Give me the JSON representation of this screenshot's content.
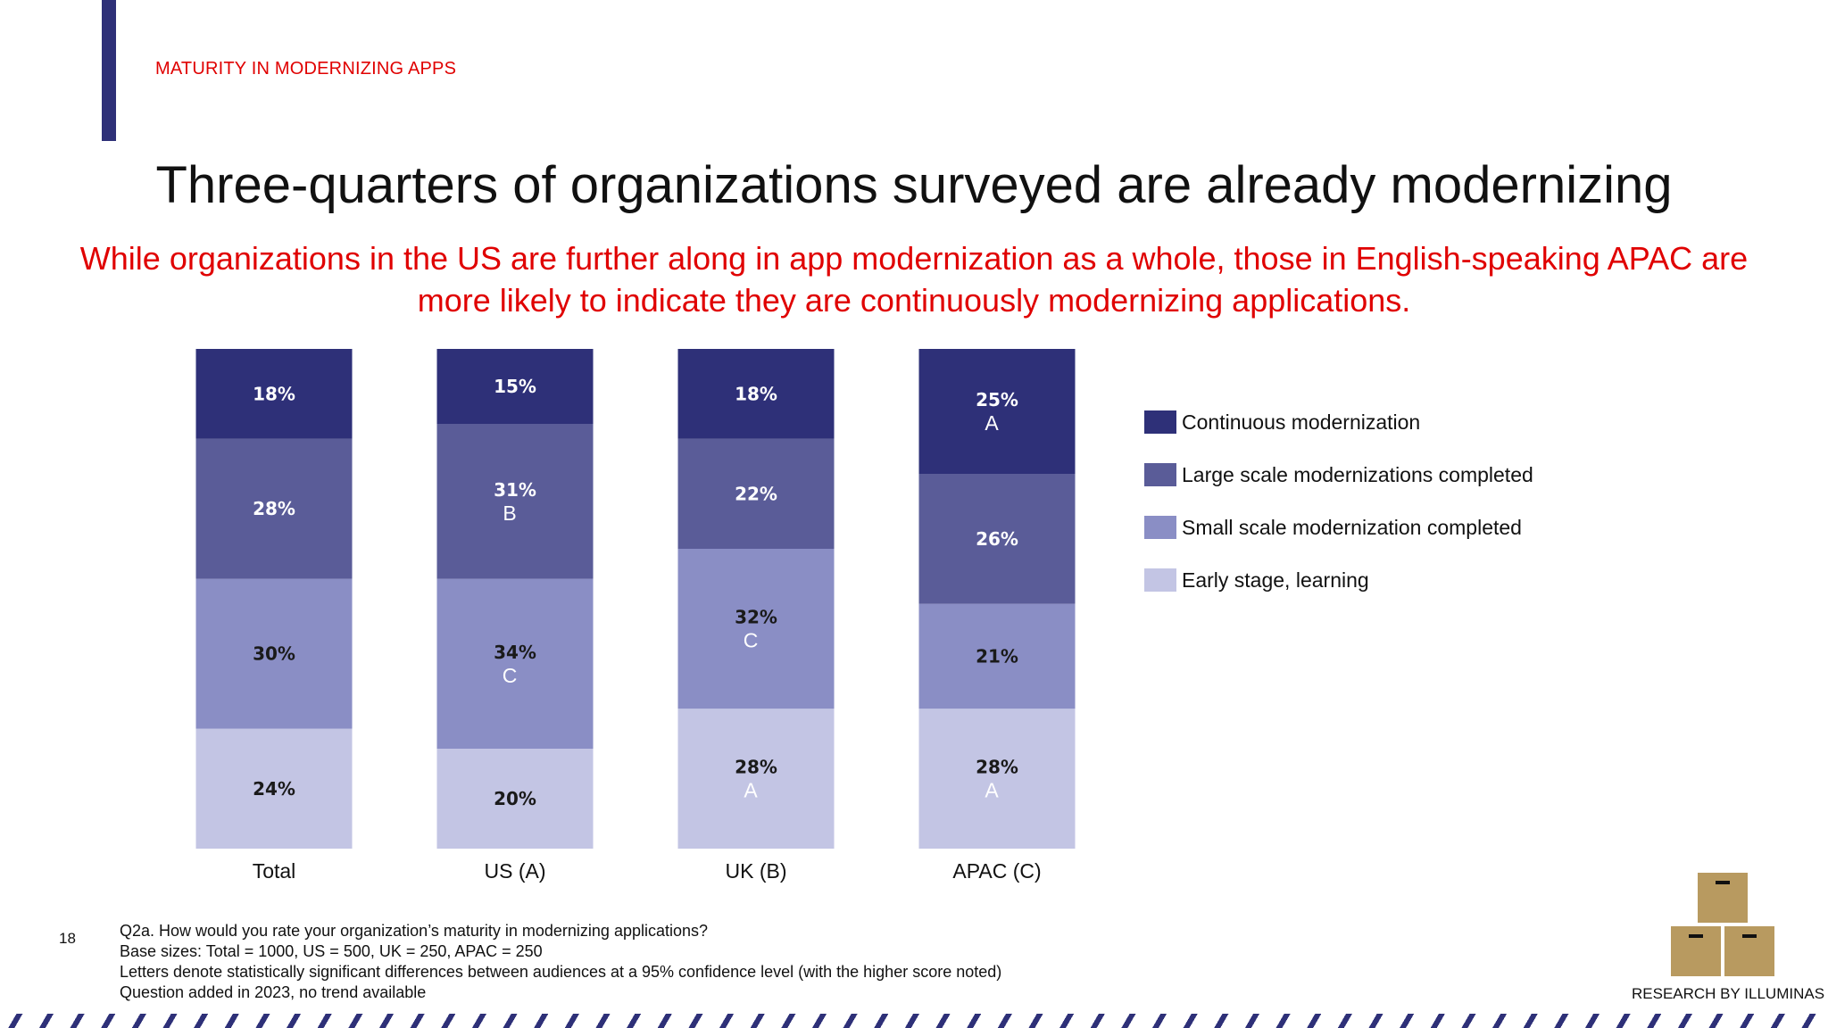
{
  "header": {
    "section_label": "MATURITY IN MODERNIZING APPS",
    "title": "Three-quarters of organizations surveyed are already modernizing",
    "subtitle": "While organizations in the US are further along in app modernization as a whole, those in English-speaking APAC are more likely to indicate they are continuously modernizing applications."
  },
  "chart_data": {
    "type": "bar",
    "stacked": true,
    "orientation": "vertical",
    "categories": [
      "Total",
      "US (A)",
      "UK (B)",
      "APAC (C)"
    ],
    "series": [
      {
        "name": "Early stage, learning",
        "color": "#c3c5e4",
        "label_color": "#1a1a1a",
        "values": [
          24,
          20,
          28,
          28
        ],
        "labels": [
          "24%",
          "20%",
          "28%",
          "28%"
        ],
        "sig": [
          "",
          "",
          "A",
          "A"
        ]
      },
      {
        "name": "Small scale modernization completed",
        "color": "#8a8ec5",
        "label_color": "#1a1a1a",
        "values": [
          30,
          34,
          32,
          21
        ],
        "labels": [
          "30%",
          "34%",
          "32%",
          "21%"
        ],
        "sig": [
          "",
          "C",
          "C",
          ""
        ]
      },
      {
        "name": "Large scale modernizations completed",
        "color": "#5a5c98",
        "label_color": "#ffffff",
        "values": [
          28,
          31,
          22,
          26
        ],
        "labels": [
          "28%",
          "31%",
          "22%",
          "26%"
        ],
        "sig": [
          "",
          "B",
          "",
          ""
        ]
      },
      {
        "name": "Continuous modernization",
        "color": "#2e3078",
        "label_color": "#ffffff",
        "values": [
          18,
          15,
          18,
          25
        ],
        "labels": [
          "18%",
          "15%",
          "18%",
          "25%"
        ],
        "sig": [
          "",
          "",
          "",
          "A"
        ]
      }
    ],
    "legend_position": "right",
    "grid": false
  },
  "footer": {
    "page_number": "18",
    "notes": [
      "Q2a. How would you rate your organization’s maturity in modernizing applications?",
      "Base sizes: Total = 1000, US = 500, UK = 250, APAC = 250",
      "Letters denote statistically significant differences between audiences at a 95% confidence level (with the higher score noted)",
      "Question added in 2023, no trend available"
    ],
    "brand": "RESEARCH BY ILLUMINAS",
    "brand_logo_icon": "stacked-boxes-icon"
  }
}
